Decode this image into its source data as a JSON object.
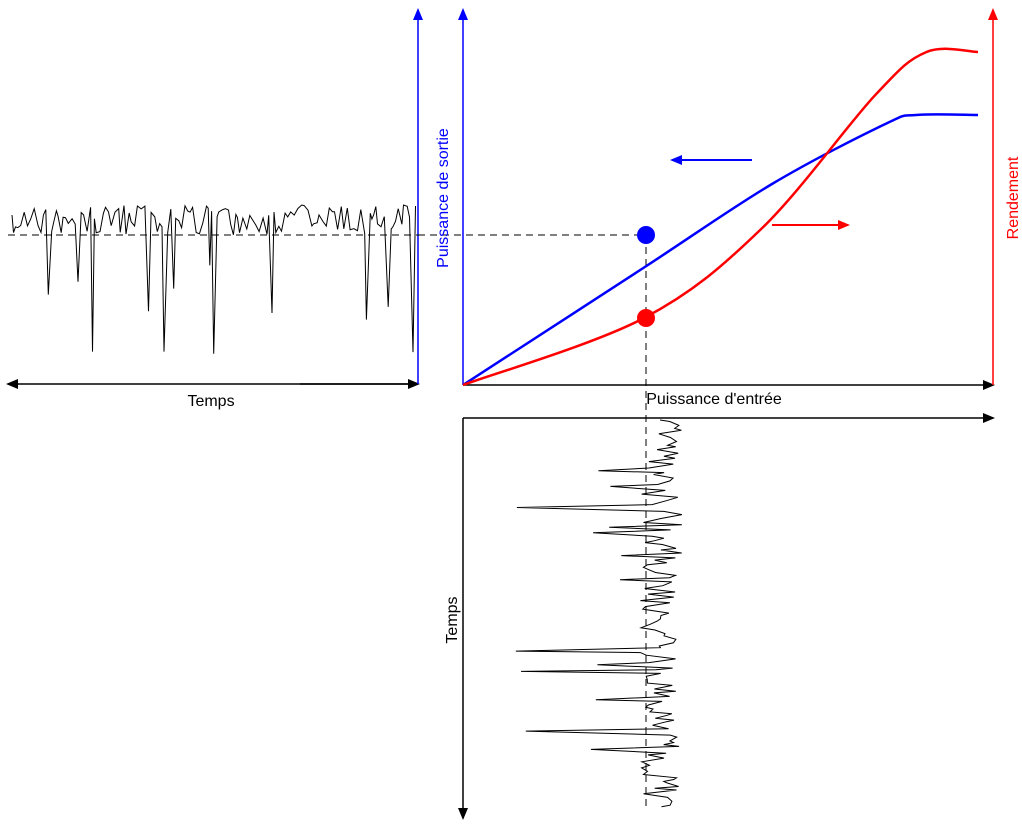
{
  "labels": {
    "temps_bottom_left": "Temps",
    "puissance_entree": "Puissance d'entrée",
    "puissance_sortie": "Puissance de sortie",
    "rendement": "Rendement",
    "temps_vertical": "Temps"
  },
  "colors": {
    "output_power": "#0000ff",
    "efficiency": "#ff0000",
    "axis": "#000000",
    "signal": "#000000"
  },
  "chart_data": [
    {
      "type": "line",
      "name": "amplifier-characteristics",
      "xlabel": "Puissance d'entrée",
      "ylabel": "Puissance de sortie",
      "y2label": "Rendement",
      "series": [
        {
          "axis": "left",
          "color": "#0000ff",
          "points": [
            [
              0,
              0
            ],
            [
              0.35,
              0.39
            ],
            [
              0.6,
              0.67
            ],
            [
              0.82,
              0.87
            ],
            [
              0.88,
              0.9
            ],
            [
              1,
              0.9
            ]
          ]
        },
        {
          "axis": "right",
          "color": "#ff0000",
          "points": [
            [
              0,
              0
            ],
            [
              0.35,
              0.2
            ],
            [
              0.58,
              0.47
            ],
            [
              0.8,
              0.87
            ],
            [
              0.9,
              1
            ],
            [
              1,
              1
            ]
          ]
        }
      ],
      "operating_point": {
        "x": 0.35,
        "output": 0.39,
        "efficiency": 0.2
      }
    }
  ]
}
